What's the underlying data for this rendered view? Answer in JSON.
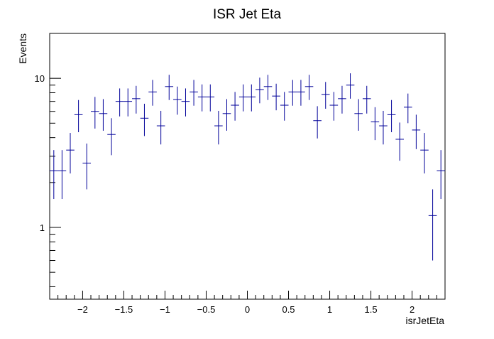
{
  "chart_data": {
    "type": "scatter",
    "title": "ISR Jet Eta",
    "xlabel": "isrJetEta",
    "ylabel": "Events",
    "xlim": [
      -2.4,
      2.4
    ],
    "ylim": [
      0.33,
      20
    ],
    "yscale": "log",
    "grid": false,
    "legend": "none",
    "error_bars": true,
    "x_ticks": [
      -2,
      -1.5,
      -1,
      -0.5,
      0,
      0.5,
      1,
      1.5,
      2
    ],
    "x_tick_labels": [
      "−2",
      "−1.5",
      "−1",
      "−0.5",
      "0",
      "0.5",
      "1",
      "1.5",
      "2"
    ],
    "y_ticks": [
      1,
      10
    ],
    "y_tick_labels": [
      "1",
      "10"
    ],
    "bin_width": 0.1,
    "x": [
      -2.35,
      -2.25,
      -2.15,
      -2.05,
      -1.95,
      -1.85,
      -1.75,
      -1.65,
      -1.55,
      -1.45,
      -1.35,
      -1.25,
      -1.15,
      -1.05,
      -0.95,
      -0.85,
      -0.75,
      -0.65,
      -0.55,
      -0.45,
      -0.35,
      -0.25,
      -0.15,
      -0.05,
      0.05,
      0.15,
      0.25,
      0.35,
      0.45,
      0.55,
      0.65,
      0.75,
      0.85,
      0.95,
      1.05,
      1.15,
      1.25,
      1.35,
      1.45,
      1.55,
      1.65,
      1.75,
      1.85,
      1.95,
      2.05,
      2.15,
      2.25,
      2.35
    ],
    "values": [
      2.4,
      2.4,
      3.3,
      5.7,
      2.7,
      6.0,
      5.8,
      4.2,
      7.0,
      7.0,
      7.3,
      5.4,
      8.1,
      4.8,
      8.8,
      7.2,
      7.0,
      8.1,
      7.5,
      7.5,
      4.8,
      5.8,
      6.6,
      7.5,
      7.5,
      8.4,
      8.8,
      7.6,
      6.6,
      8.1,
      8.1,
      8.8,
      5.2,
      7.8,
      6.6,
      7.3,
      9.0,
      5.8,
      7.3,
      5.1,
      4.8,
      5.7,
      3.9,
      6.4,
      4.5,
      3.3,
      1.2,
      2.4
    ],
    "error_low": [
      0.85,
      0.85,
      1.0,
      1.35,
      0.9,
      1.4,
      1.35,
      1.15,
      1.45,
      1.45,
      1.5,
      1.3,
      1.55,
      1.2,
      1.65,
      1.5,
      1.45,
      1.55,
      1.5,
      1.5,
      1.2,
      1.35,
      1.4,
      1.5,
      1.5,
      1.6,
      1.65,
      1.5,
      1.4,
      1.55,
      1.55,
      1.65,
      1.25,
      1.55,
      1.4,
      1.5,
      1.7,
      1.35,
      1.5,
      1.25,
      1.2,
      1.35,
      1.1,
      1.4,
      1.15,
      1.0,
      0.6,
      0.85
    ],
    "error_high": [
      0.9,
      0.9,
      1.0,
      1.45,
      0.95,
      1.5,
      1.45,
      1.2,
      1.55,
      1.55,
      1.6,
      1.35,
      1.65,
      1.25,
      1.75,
      1.6,
      1.55,
      1.65,
      1.6,
      1.6,
      1.25,
      1.45,
      1.5,
      1.6,
      1.6,
      1.7,
      1.75,
      1.6,
      1.5,
      1.65,
      1.65,
      1.75,
      1.3,
      1.65,
      1.5,
      1.6,
      1.8,
      1.45,
      1.6,
      1.3,
      1.25,
      1.45,
      1.15,
      1.5,
      1.2,
      1.0,
      0.6,
      0.9
    ]
  },
  "style": {
    "marker_color": "#000099",
    "axis_color": "#000000",
    "background": "#ffffff"
  }
}
